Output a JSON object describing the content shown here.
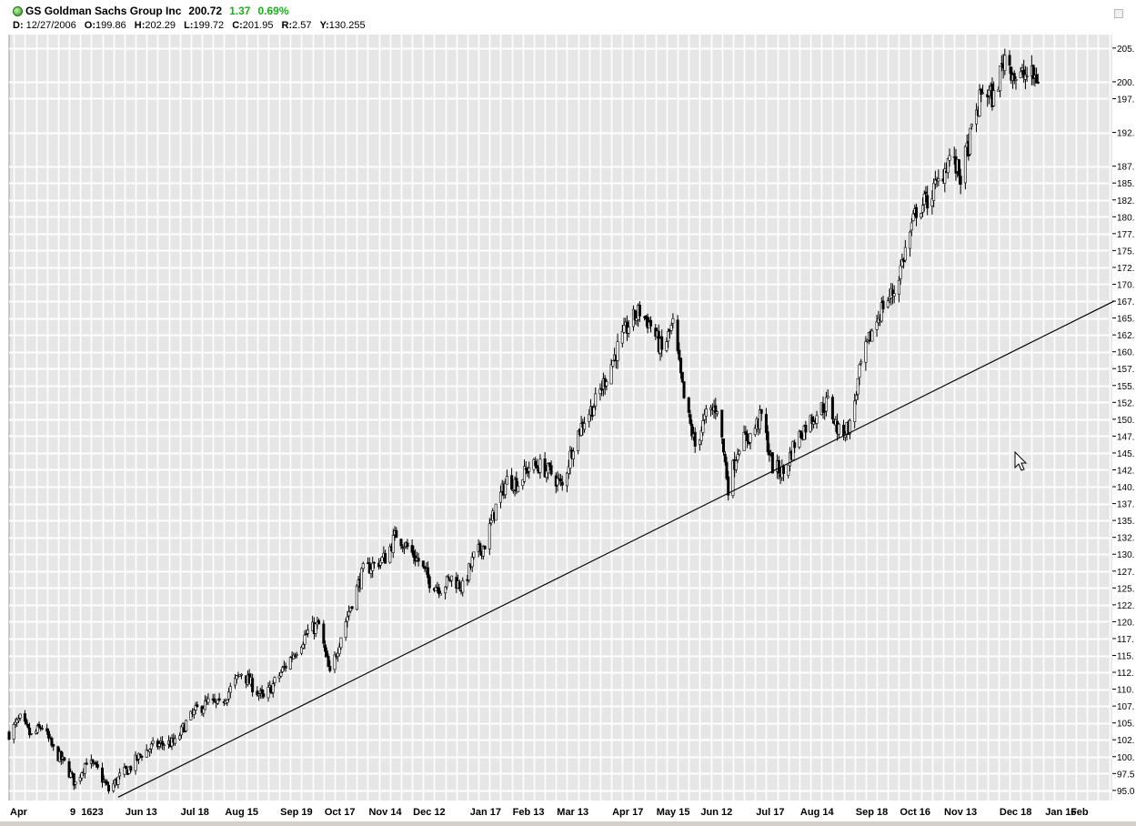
{
  "header": {
    "symbol": "GS",
    "name": "Goldman Sachs Group Inc",
    "last": "200.72",
    "change": "1.37",
    "change_pct": "0.69%",
    "change_color": "#19b319",
    "status_icon": "green-status-dot-icon",
    "date_label": "D:",
    "date": "12/27/2006",
    "open_label": "O:",
    "open": "199.86",
    "high_label": "H:",
    "high": "202.29",
    "low_label": "L:",
    "low": "199.72",
    "close_label": "C:",
    "close": "201.95",
    "range_label": "R:",
    "range": "2.57",
    "y_label": "Y:",
    "y_value": "130.255"
  },
  "chart_data": {
    "type": "candlestick",
    "title": "GS Goldman Sachs Group Inc",
    "xlabel": "",
    "ylabel": "",
    "ylim": [
      93.5,
      207
    ],
    "x_range": [
      "2005-04-01",
      "2007-02-28"
    ],
    "grid": true,
    "background_color": "#e6e6e6",
    "grid_color": "#ffffff",
    "bar_color": "#000000",
    "y_tick_labels": [
      "95.0",
      "97.5",
      "100.",
      "102.",
      "105.",
      "107.",
      "110.",
      "112.",
      "115.",
      "117.",
      "120.",
      "122.",
      "125.",
      "127.",
      "130.",
      "132.",
      "135.",
      "137.",
      "140.",
      "142.",
      "145.",
      "147.",
      "150.",
      "152.",
      "155.",
      "157.",
      "160.",
      "162.",
      "165.",
      "167.",
      "170.",
      "172.",
      "175.",
      "177.",
      "180.",
      "182.",
      "185.",
      "187.",
      "192.",
      "197.",
      "200.",
      "205."
    ],
    "y_tick_values": [
      95,
      97.5,
      100,
      102.5,
      105,
      107.5,
      110,
      112.5,
      115,
      117.5,
      120,
      122.5,
      125,
      127.5,
      130,
      132.5,
      135,
      137.5,
      140,
      142.5,
      145,
      147.5,
      150,
      152.5,
      155,
      157.5,
      160,
      162.5,
      165,
      167.5,
      170,
      172.5,
      175,
      177.5,
      180,
      182.5,
      185,
      187.5,
      192.5,
      197.5,
      200,
      205
    ],
    "x_tick_labels": [
      {
        "date": "2005-04-01",
        "label": "Apr"
      },
      {
        "date": "2005-05-09",
        "label": "9"
      },
      {
        "date": "2005-05-16",
        "label": "16"
      },
      {
        "date": "2005-05-23",
        "label": "23"
      },
      {
        "date": "2005-06-13",
        "label": "Jun 13"
      },
      {
        "date": "2005-07-18",
        "label": "Jul 18"
      },
      {
        "date": "2005-08-15",
        "label": "Aug 15"
      },
      {
        "date": "2005-09-19",
        "label": "Sep 19"
      },
      {
        "date": "2005-10-17",
        "label": "Oct 17"
      },
      {
        "date": "2005-11-14",
        "label": "Nov 14"
      },
      {
        "date": "2005-12-12",
        "label": "Dec 12"
      },
      {
        "date": "2006-01-17",
        "label": "Jan 17"
      },
      {
        "date": "2006-02-13",
        "label": "Feb 13"
      },
      {
        "date": "2006-03-13",
        "label": "Mar 13"
      },
      {
        "date": "2006-04-17",
        "label": "Apr 17"
      },
      {
        "date": "2006-05-15",
        "label": "May 15"
      },
      {
        "date": "2006-06-12",
        "label": "Jun 12"
      },
      {
        "date": "2006-07-17",
        "label": "Jul 17"
      },
      {
        "date": "2006-08-14",
        "label": "Aug 14"
      },
      {
        "date": "2006-09-18",
        "label": "Sep 18"
      },
      {
        "date": "2006-10-16",
        "label": "Oct 16"
      },
      {
        "date": "2006-11-13",
        "label": "Nov 13"
      },
      {
        "date": "2006-12-18",
        "label": "Dec 18"
      },
      {
        "date": "2007-01-16",
        "label": "Jan 16"
      },
      {
        "date": "2007-02-01",
        "label": "Feb"
      }
    ],
    "price_path": [
      [
        "2005-04-01",
        103.5
      ],
      [
        "2005-04-08",
        105.5
      ],
      [
        "2005-04-15",
        103
      ],
      [
        "2005-04-22",
        104.5
      ],
      [
        "2005-04-29",
        101
      ],
      [
        "2005-05-06",
        99
      ],
      [
        "2005-05-13",
        96
      ],
      [
        "2005-05-20",
        99.5
      ],
      [
        "2005-05-27",
        98
      ],
      [
        "2005-06-03",
        95
      ],
      [
        "2005-06-10",
        97
      ],
      [
        "2005-06-17",
        98.5
      ],
      [
        "2005-06-24",
        100.5
      ],
      [
        "2005-07-01",
        101.5
      ],
      [
        "2005-07-08",
        102
      ],
      [
        "2005-07-15",
        102
      ],
      [
        "2005-07-22",
        105
      ],
      [
        "2005-07-29",
        107
      ],
      [
        "2005-08-05",
        108
      ],
      [
        "2005-08-12",
        107.5
      ],
      [
        "2005-08-19",
        110
      ],
      [
        "2005-08-26",
        112.5
      ],
      [
        "2005-09-02",
        110.5
      ],
      [
        "2005-09-09",
        108.5
      ],
      [
        "2005-09-16",
        111
      ],
      [
        "2005-09-23",
        113.5
      ],
      [
        "2005-09-30",
        116
      ],
      [
        "2005-10-07",
        118.5
      ],
      [
        "2005-10-14",
        119.5
      ],
      [
        "2005-10-21",
        112
      ],
      [
        "2005-10-28",
        118
      ],
      [
        "2005-11-04",
        123
      ],
      [
        "2005-11-11",
        127.5
      ],
      [
        "2005-11-18",
        128.5
      ],
      [
        "2005-11-25",
        129.5
      ],
      [
        "2005-12-02",
        133
      ],
      [
        "2005-12-09",
        131
      ],
      [
        "2005-12-16",
        129
      ],
      [
        "2005-12-23",
        126
      ],
      [
        "2005-12-30",
        125
      ],
      [
        "2006-01-06",
        126.5
      ],
      [
        "2006-01-13",
        125
      ],
      [
        "2006-01-20",
        129.5
      ],
      [
        "2006-01-27",
        131.5
      ],
      [
        "2006-02-03",
        137
      ],
      [
        "2006-02-10",
        141
      ],
      [
        "2006-02-17",
        140.5
      ],
      [
        "2006-02-24",
        143
      ],
      [
        "2006-03-03",
        143
      ],
      [
        "2006-03-10",
        142
      ],
      [
        "2006-03-17",
        140
      ],
      [
        "2006-03-24",
        146.5
      ],
      [
        "2006-03-31",
        150
      ],
      [
        "2006-04-07",
        152.5
      ],
      [
        "2006-04-14",
        156.5
      ],
      [
        "2006-04-21",
        160.5
      ],
      [
        "2006-04-28",
        164
      ],
      [
        "2006-05-05",
        166
      ],
      [
        "2006-05-12",
        164
      ],
      [
        "2006-05-19",
        160
      ],
      [
        "2006-05-26",
        164
      ],
      [
        "2006-06-02",
        153
      ],
      [
        "2006-06-09",
        146
      ],
      [
        "2006-06-16",
        150.5
      ],
      [
        "2006-06-23",
        152
      ],
      [
        "2006-06-30",
        140
      ],
      [
        "2006-07-07",
        146.5
      ],
      [
        "2006-07-14",
        147.5
      ],
      [
        "2006-07-21",
        150.5
      ],
      [
        "2006-07-28",
        143
      ],
      [
        "2006-08-04",
        142
      ],
      [
        "2006-08-11",
        146.5
      ],
      [
        "2006-08-18",
        149
      ],
      [
        "2006-08-25",
        151
      ],
      [
        "2006-09-01",
        152.5
      ],
      [
        "2006-09-08",
        148
      ],
      [
        "2006-09-15",
        149
      ],
      [
        "2006-09-22",
        158
      ],
      [
        "2006-09-29",
        163
      ],
      [
        "2006-10-06",
        167
      ],
      [
        "2006-10-13",
        169
      ],
      [
        "2006-10-20",
        175
      ],
      [
        "2006-10-27",
        181
      ],
      [
        "2006-11-03",
        182.5
      ],
      [
        "2006-11-10",
        185
      ],
      [
        "2006-11-17",
        189
      ],
      [
        "2006-11-24",
        186
      ],
      [
        "2006-12-01",
        192.5
      ],
      [
        "2006-12-08",
        199
      ],
      [
        "2006-12-15",
        197.5
      ],
      [
        "2006-12-22",
        204
      ],
      [
        "2006-12-29",
        200.5
      ],
      [
        "2007-01-05",
        201
      ],
      [
        "2007-01-12",
        200.5
      ]
    ],
    "trendline": {
      "start": [
        "2005-06-09",
        94
      ],
      "end": [
        "2007-03-01",
        167.5
      ]
    },
    "legend": null
  }
}
